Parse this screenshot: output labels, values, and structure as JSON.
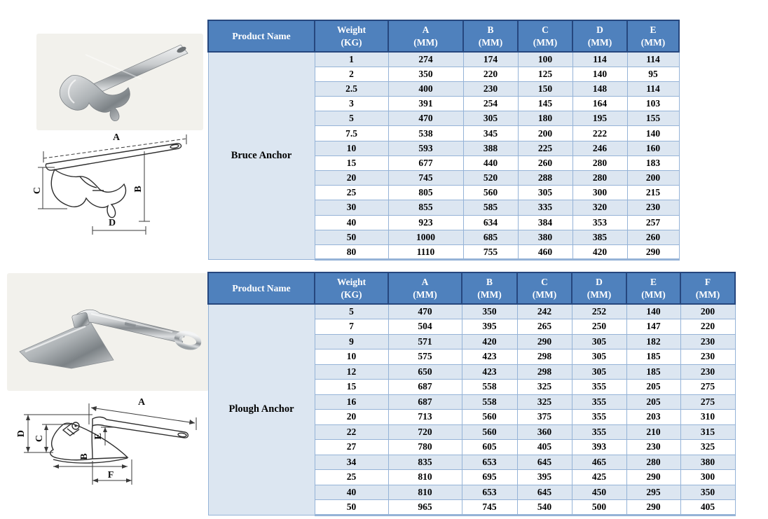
{
  "colors": {
    "header_bg": "#4f81bd",
    "header_border": "#26477e",
    "header_text": "#ffffff",
    "grid_border": "#95b3d7",
    "row_alt_bg": "#dce6f1",
    "row_bg": "#ffffff",
    "value_text": "#000000"
  },
  "tables": [
    {
      "product_header": "Product Name",
      "product": "Bruce Anchor",
      "columns": [
        {
          "label": "Weight",
          "unit": "(KG)"
        },
        {
          "label": "A",
          "unit": "(MM)"
        },
        {
          "label": "B",
          "unit": "(MM)"
        },
        {
          "label": "C",
          "unit": "(MM)"
        },
        {
          "label": "D",
          "unit": "(MM)"
        },
        {
          "label": "E",
          "unit": "(MM)"
        }
      ],
      "rows": [
        [
          "1",
          "274",
          "174",
          "100",
          "114",
          "114"
        ],
        [
          "2",
          "350",
          "220",
          "125",
          "140",
          "95"
        ],
        [
          "2.5",
          "400",
          "230",
          "150",
          "148",
          "114"
        ],
        [
          "3",
          "391",
          "254",
          "145",
          "164",
          "103"
        ],
        [
          "5",
          "470",
          "305",
          "180",
          "195",
          "155"
        ],
        [
          "7.5",
          "538",
          "345",
          "200",
          "222",
          "140"
        ],
        [
          "10",
          "593",
          "388",
          "225",
          "246",
          "160"
        ],
        [
          "15",
          "677",
          "440",
          "260",
          "280",
          "183"
        ],
        [
          "20",
          "745",
          "520",
          "288",
          "280",
          "200"
        ],
        [
          "25",
          "805",
          "560",
          "305",
          "300",
          "215"
        ],
        [
          "30",
          "855",
          "585",
          "335",
          "320",
          "230"
        ],
        [
          "40",
          "923",
          "634",
          "384",
          "353",
          "257"
        ],
        [
          "50",
          "1000",
          "685",
          "380",
          "385",
          "260"
        ],
        [
          "80",
          "1110",
          "755",
          "460",
          "420",
          "290"
        ]
      ]
    },
    {
      "product_header": "Product Name",
      "product": "Plough Anchor",
      "columns": [
        {
          "label": "Weight",
          "unit": "(KG)"
        },
        {
          "label": "A",
          "unit": "(MM)"
        },
        {
          "label": "B",
          "unit": "(MM)"
        },
        {
          "label": "C",
          "unit": "(MM)"
        },
        {
          "label": "D",
          "unit": "(MM)"
        },
        {
          "label": "E",
          "unit": "(MM)"
        },
        {
          "label": "F",
          "unit": "(MM)"
        }
      ],
      "rows": [
        [
          "5",
          "470",
          "350",
          "242",
          "252",
          "140",
          "200"
        ],
        [
          "7",
          "504",
          "395",
          "265",
          "250",
          "147",
          "220"
        ],
        [
          "9",
          "571",
          "420",
          "290",
          "305",
          "182",
          "230"
        ],
        [
          "10",
          "575",
          "423",
          "298",
          "305",
          "185",
          "230"
        ],
        [
          "12",
          "650",
          "423",
          "298",
          "305",
          "185",
          "230"
        ],
        [
          "15",
          "687",
          "558",
          "325",
          "355",
          "205",
          "275"
        ],
        [
          "16",
          "687",
          "558",
          "325",
          "355",
          "205",
          "275"
        ],
        [
          "20",
          "713",
          "560",
          "375",
          "355",
          "203",
          "310"
        ],
        [
          "22",
          "720",
          "560",
          "360",
          "355",
          "210",
          "315"
        ],
        [
          "27",
          "780",
          "605",
          "405",
          "393",
          "230",
          "325"
        ],
        [
          "34",
          "835",
          "653",
          "645",
          "465",
          "280",
          "380"
        ],
        [
          "25",
          "810",
          "695",
          "395",
          "425",
          "290",
          "300"
        ],
        [
          "40",
          "810",
          "653",
          "645",
          "450",
          "295",
          "350"
        ],
        [
          "50",
          "965",
          "745",
          "540",
          "500",
          "290",
          "405"
        ]
      ]
    }
  ],
  "figures": {
    "bruce_diagram": {
      "labels": [
        "A",
        "C",
        "B",
        "D"
      ]
    },
    "plough_diagram": {
      "labels": [
        "A",
        "D",
        "C",
        "E",
        "B",
        "F"
      ]
    }
  }
}
